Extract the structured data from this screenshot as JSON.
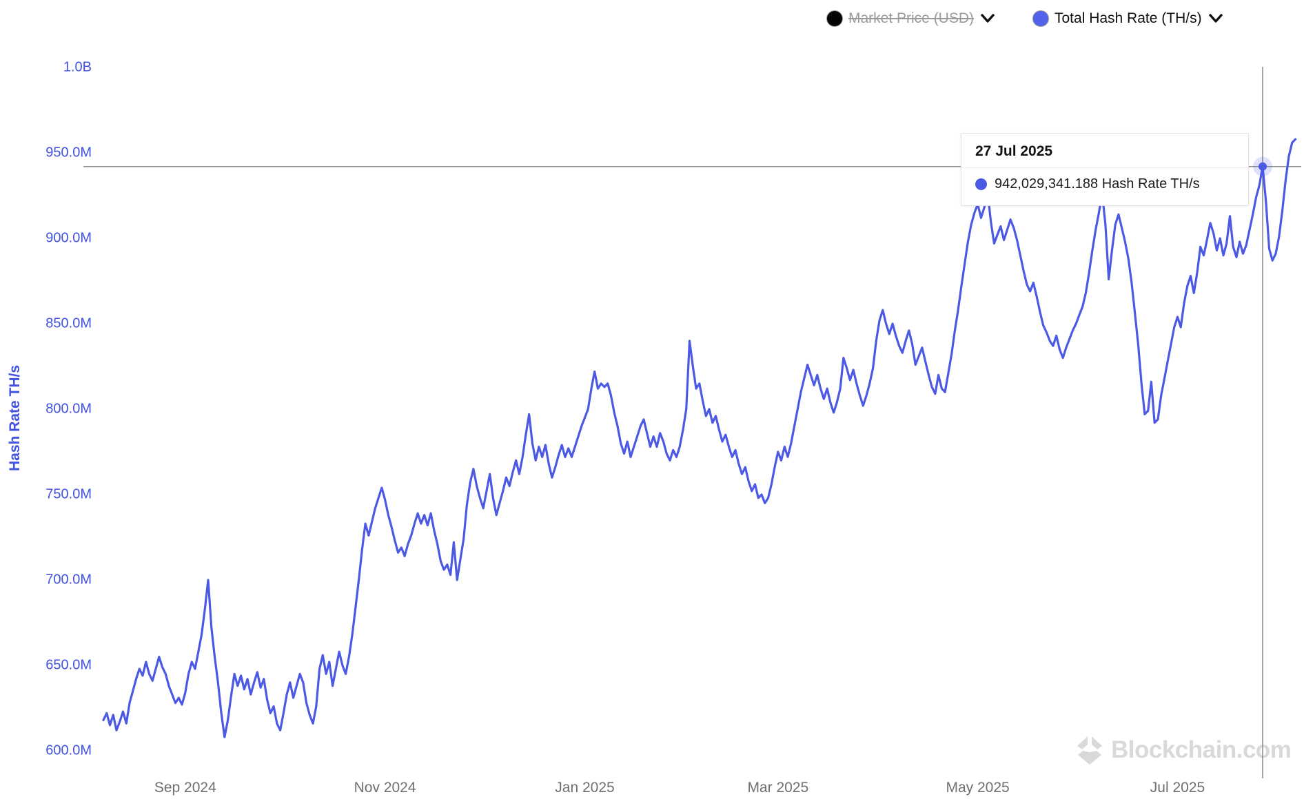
{
  "legend": {
    "items": [
      {
        "name": "market-price",
        "label": "Market Price (USD)",
        "marker_color": "#050505",
        "enabled": false
      },
      {
        "name": "total-hash-rate",
        "label": "Total Hash Rate (TH/s)",
        "marker_color": "#5362ea",
        "enabled": true
      }
    ]
  },
  "y_axis": {
    "title": "Hash Rate TH/s",
    "tick_labels": [
      "1.0B",
      "950.0M",
      "900.0M",
      "850.0M",
      "800.0M",
      "750.0M",
      "700.0M",
      "650.0M",
      "600.0M"
    ],
    "tick_values": [
      1000,
      950,
      900,
      850,
      800,
      750,
      700,
      650,
      600
    ],
    "unit": "TH/s"
  },
  "x_axis": {
    "tick_labels": [
      "Sep 2024",
      "Nov 2024",
      "Jan 2025",
      "Mar 2025",
      "May 2025",
      "Jul 2025"
    ],
    "tick_dates": [
      "2024-09-01",
      "2024-11-01",
      "2025-01-01",
      "2025-03-01",
      "2025-05-01",
      "2025-07-01"
    ]
  },
  "tooltip": {
    "date": "27 Jul 2025",
    "value_label": "942,029,341.188 Hash Rate TH/s"
  },
  "watermark": {
    "text": "Blockchain.com"
  },
  "colors": {
    "line": "#4b59e5",
    "y_label": "#4152e0",
    "x_label": "#6f6f6f",
    "crosshair": "#8f8f8f",
    "legend_disabled_text": "#9a9a9a",
    "legend_enabled_text": "#101010",
    "watermark": "#d9d9d9",
    "tooltip_border": "#e3e3e3"
  },
  "chart_data": {
    "type": "line",
    "title": "",
    "xlabel": "",
    "ylabel": "Hash Rate TH/s",
    "grid": false,
    "legend_position": "top-right",
    "ylim": [
      600,
      1000
    ],
    "y_unit": "million TH/s",
    "series": [
      {
        "name": "Total Hash Rate (TH/s)",
        "color": "#4b59e5",
        "x_start": "2024-08-07",
        "step_days": 1,
        "values": [
          618,
          622,
          615,
          621,
          612,
          617,
          623,
          616,
          628,
          635,
          642,
          648,
          644,
          652,
          645,
          641,
          648,
          655,
          649,
          645,
          638,
          633,
          628,
          631,
          627,
          634,
          645,
          652,
          648,
          658,
          668,
          683,
          700,
          672,
          655,
          640,
          622,
          608,
          618,
          632,
          645,
          638,
          644,
          636,
          642,
          633,
          640,
          646,
          637,
          642,
          630,
          622,
          626,
          616,
          612,
          622,
          633,
          640,
          631,
          638,
          645,
          640,
          628,
          621,
          616,
          626,
          648,
          656,
          645,
          652,
          638,
          648,
          658,
          650,
          645,
          655,
          668,
          684,
          700,
          718,
          733,
          726,
          734,
          742,
          748,
          754,
          747,
          738,
          731,
          723,
          716,
          719,
          714,
          721,
          726,
          733,
          739,
          733,
          738,
          732,
          739,
          729,
          721,
          711,
          706,
          709,
          703,
          722,
          700,
          712,
          724,
          744,
          757,
          765,
          755,
          748,
          742,
          752,
          762,
          748,
          738,
          745,
          752,
          760,
          755,
          763,
          770,
          762,
          772,
          785,
          797,
          780,
          770,
          778,
          772,
          779,
          768,
          760,
          766,
          773,
          779,
          772,
          777,
          772,
          778,
          784,
          790,
          795,
          800,
          812,
          822,
          812,
          815,
          813,
          815,
          808,
          798,
          790,
          780,
          774,
          781,
          772,
          778,
          784,
          790,
          794,
          786,
          778,
          784,
          778,
          786,
          781,
          774,
          770,
          776,
          772,
          778,
          788,
          800,
          840,
          825,
          812,
          815,
          805,
          796,
          800,
          792,
          796,
          788,
          781,
          785,
          778,
          772,
          776,
          768,
          762,
          766,
          758,
          752,
          756,
          748,
          750,
          745,
          748,
          756,
          766,
          775,
          770,
          778,
          772,
          780,
          790,
          800,
          810,
          818,
          826,
          820,
          814,
          820,
          812,
          806,
          812,
          804,
          798,
          804,
          812,
          830,
          824,
          817,
          823,
          815,
          808,
          802,
          808,
          815,
          824,
          840,
          852,
          858,
          850,
          844,
          850,
          843,
          837,
          833,
          840,
          846,
          838,
          826,
          831,
          836,
          828,
          820,
          813,
          809,
          820,
          812,
          810,
          821,
          832,
          846,
          858,
          872,
          885,
          898,
          908,
          915,
          920,
          912,
          918,
          927,
          910,
          897,
          902,
          907,
          899,
          905,
          911,
          906,
          899,
          890,
          881,
          873,
          869,
          874,
          866,
          857,
          849,
          845,
          840,
          837,
          843,
          835,
          830,
          836,
          841,
          846,
          850,
          855,
          860,
          868,
          880,
          893,
          905,
          915,
          926,
          908,
          876,
          893,
          908,
          914,
          906,
          898,
          888,
          874,
          856,
          838,
          815,
          797,
          799,
          816,
          792,
          794,
          808,
          818,
          828,
          838,
          848,
          854,
          848,
          862,
          872,
          878,
          868,
          880,
          895,
          890,
          899,
          909,
          903,
          893,
          900,
          890,
          897,
          913,
          895,
          889,
          898,
          891,
          896,
          905,
          914,
          924,
          931,
          942.029341188,
          922,
          894,
          887,
          891,
          901,
          916,
          934,
          948,
          956,
          958
        ]
      }
    ],
    "highlight": {
      "date": "2025-07-27",
      "value": 942.029341188,
      "value_exact_ths": "942,029,341.188",
      "label": "942,029,341.188 Hash Rate TH/s"
    }
  }
}
